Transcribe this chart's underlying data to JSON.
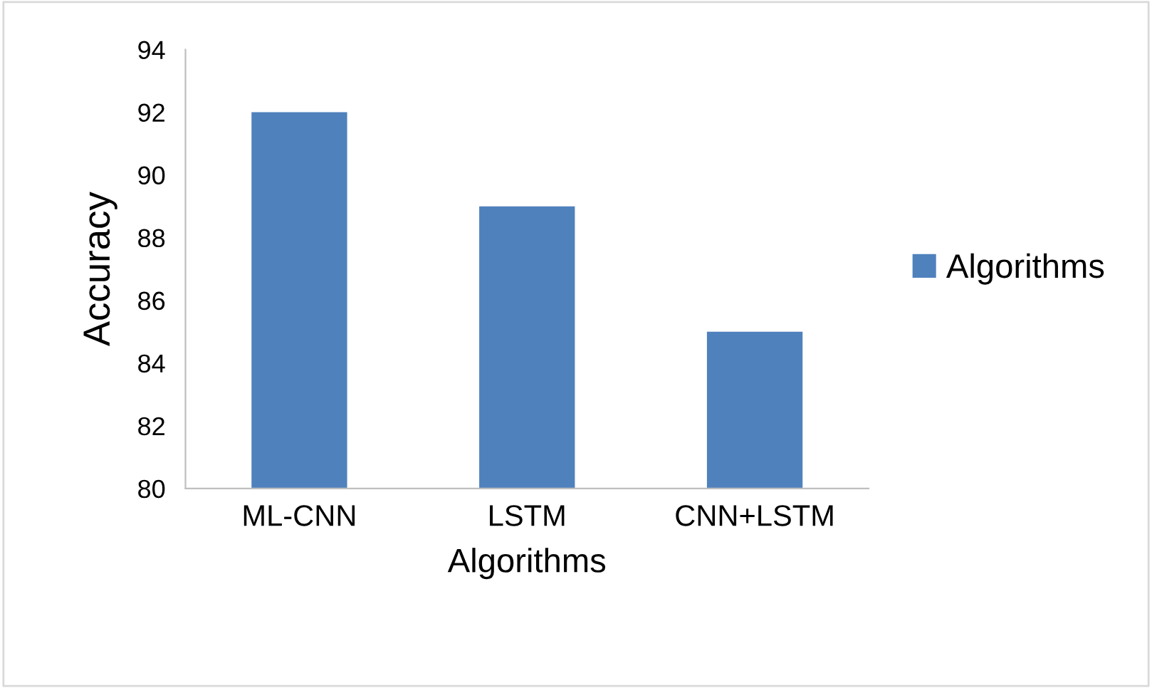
{
  "chart_data": {
    "type": "bar",
    "xlabel": "Algorithms",
    "ylabel": "Accuracy",
    "categories": [
      "ML-CNN",
      "LSTM",
      "CNN+LSTM"
    ],
    "series": [
      {
        "name": "Algorithms",
        "color": "#4f81bd",
        "values": [
          92,
          89,
          85
        ]
      }
    ],
    "ylim": [
      80,
      94
    ],
    "yticks": [
      80,
      82,
      84,
      86,
      88,
      90,
      92,
      94
    ],
    "grid": false,
    "legend": "right"
  }
}
